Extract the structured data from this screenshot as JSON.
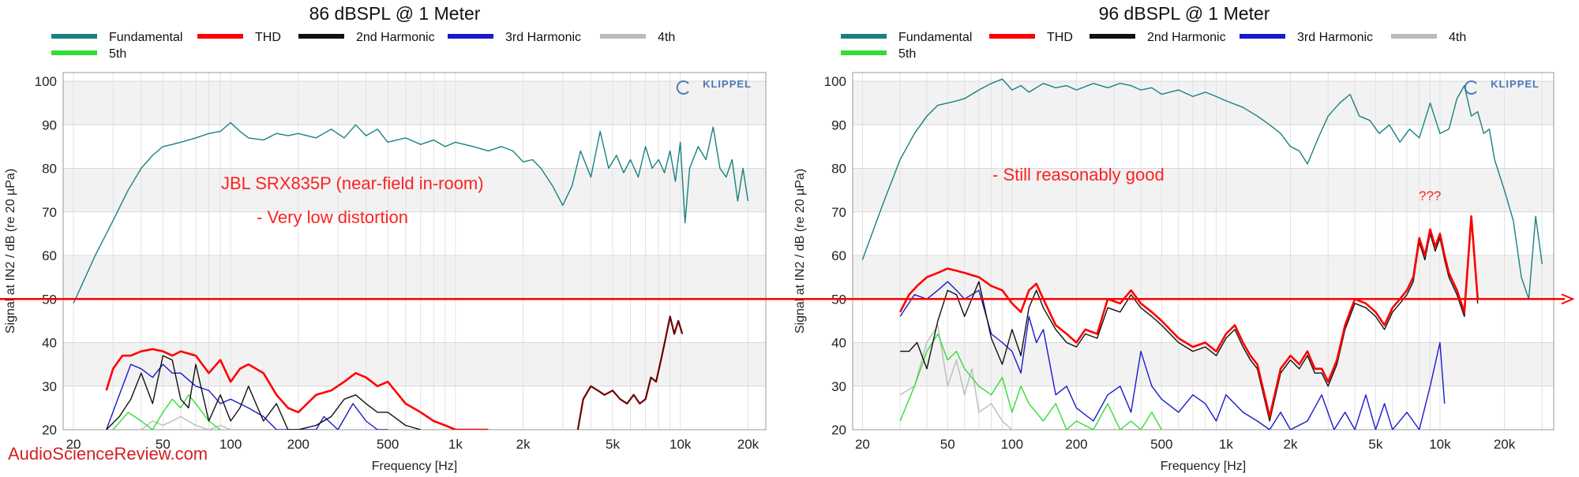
{
  "watermark": "AudioScienceReview.com",
  "colors": {
    "fundamental": "#1a8080",
    "thd": "#ff0000",
    "h2": "#111111",
    "h3": "#1a1acc",
    "h4": "#bbbbbb",
    "h5": "#33dd33",
    "reference_line": "#ff0000",
    "annotation": "#ff2020"
  },
  "reference_line": {
    "y": 50
  },
  "chart_data": [
    {
      "type": "line",
      "title": "86 dBSPL @ 1 Meter",
      "xlabel": "Frequency [Hz]",
      "ylabel": "Signal at IN2 / dB (re 20 µPa)",
      "xscale": "log",
      "xlim": [
        18,
        24000
      ],
      "ylim": [
        20,
        102
      ],
      "xticks": [
        20,
        50,
        100,
        200,
        500,
        1000,
        2000,
        5000,
        10000,
        20000
      ],
      "xtick_labels": [
        "20",
        "50",
        "100",
        "200",
        "500",
        "1k",
        "2k",
        "5k",
        "10k",
        "20k"
      ],
      "yticks": [
        20,
        30,
        40,
        50,
        60,
        70,
        80,
        90,
        100
      ],
      "logo": "KLIPPEL",
      "legend": [
        "Fundamental",
        "THD",
        "2nd Harmonic",
        "3rd Harmonic",
        "4th",
        "5th"
      ],
      "annotations": [
        "JBL SRX835P (near-field in-room)",
        "- Very low distortion"
      ],
      "series": [
        {
          "name": "Fundamental",
          "color": "fundamental",
          "x": [
            20,
            25,
            30,
            35,
            40,
            45,
            50,
            55,
            60,
            70,
            80,
            90,
            100,
            110,
            120,
            140,
            160,
            180,
            200,
            240,
            280,
            320,
            360,
            400,
            450,
            500,
            600,
            700,
            800,
            900,
            1000,
            1200,
            1400,
            1600,
            1800,
            2000,
            2200,
            2400,
            2700,
            3000,
            3300,
            3600,
            4000,
            4400,
            4800,
            5200,
            5600,
            6000,
            6500,
            7000,
            7500,
            8000,
            8500,
            9000,
            9500,
            10000,
            10500,
            11000,
            12000,
            13000,
            14000,
            15000,
            16000,
            17000,
            18000,
            19000,
            20000
          ],
          "y": [
            49,
            60,
            68,
            75,
            80,
            83,
            85,
            85.5,
            86,
            87,
            88,
            88.5,
            90.5,
            88.5,
            87,
            86.5,
            88,
            87.5,
            88,
            87,
            89,
            87,
            90,
            87.5,
            89,
            86,
            87,
            85.5,
            86.5,
            85,
            86,
            85,
            84,
            85,
            84,
            81.5,
            82,
            80,
            76,
            71.5,
            76,
            84,
            78,
            88.5,
            80,
            83,
            79,
            82,
            78,
            85,
            80,
            82,
            79,
            84,
            77,
            86,
            67.5,
            80,
            85,
            82,
            89.5,
            80,
            78,
            82,
            72.5,
            80,
            72.5
          ]
        },
        {
          "name": "THD",
          "color": "thd",
          "x": [
            28,
            30,
            33,
            36,
            40,
            45,
            50,
            55,
            60,
            70,
            80,
            90,
            100,
            110,
            120,
            140,
            160,
            180,
            200,
            240,
            280,
            320,
            360,
            400,
            450,
            500,
            600,
            700,
            800,
            900,
            1000,
            1200,
            1400
          ],
          "y": [
            29,
            34,
            37,
            37,
            38,
            38.5,
            38,
            37,
            38,
            37,
            33,
            36,
            31,
            34,
            35,
            33,
            28,
            25,
            24,
            28,
            29,
            31,
            33,
            32,
            30,
            31,
            26,
            24,
            22,
            21,
            20,
            20,
            20
          ]
        },
        {
          "name": "2nd Harmonic",
          "color": "h2",
          "x": [
            28,
            32,
            36,
            40,
            45,
            50,
            55,
            60,
            65,
            70,
            80,
            90,
            100,
            110,
            120,
            140,
            160,
            180,
            200,
            240,
            280,
            320,
            360,
            400,
            450,
            500,
            600,
            700
          ],
          "y": [
            20,
            23,
            27,
            33,
            26,
            37,
            36,
            27,
            25,
            35,
            22,
            28,
            22,
            25,
            30,
            22,
            26,
            20,
            20,
            21,
            23,
            27,
            28,
            26,
            24,
            24,
            21,
            20
          ]
        },
        {
          "name": "3rd Harmonic",
          "color": "h3",
          "x": [
            28,
            32,
            36,
            40,
            45,
            50,
            55,
            60,
            70,
            80,
            90,
            100,
            120,
            140,
            160,
            180,
            200,
            240,
            260,
            300,
            350,
            400,
            450,
            500
          ],
          "y": [
            20,
            28,
            35,
            34,
            32,
            35,
            33,
            33,
            30,
            29,
            26,
            27,
            25,
            23,
            20,
            20,
            20,
            20,
            23,
            20,
            26,
            22,
            20,
            20
          ]
        },
        {
          "name": "4th",
          "color": "h4",
          "x": [
            40,
            45,
            50,
            55,
            60,
            70,
            80,
            90,
            100
          ],
          "y": [
            20,
            22,
            21,
            22,
            23,
            21,
            20,
            21,
            20
          ]
        },
        {
          "name": "5th",
          "color": "h5",
          "x": [
            30,
            35,
            40,
            45,
            50,
            55,
            60,
            65,
            70,
            80,
            90
          ],
          "y": [
            20,
            24,
            22,
            20,
            24,
            27,
            25,
            28,
            26,
            22,
            20
          ]
        },
        {
          "name": "",
          "color": "h2",
          "distortion_hf": true,
          "x": [
            3500,
            3700,
            4000,
            4300,
            4600,
            5000,
            5400,
            5800,
            6200,
            6600,
            7000,
            7400,
            7800,
            8200,
            8600,
            9000,
            9400,
            9800,
            10200
          ],
          "y": [
            20,
            27,
            30,
            29,
            28,
            29,
            27,
            26,
            28,
            26,
            27,
            32,
            31,
            36,
            41,
            46,
            42,
            45,
            42
          ]
        }
      ]
    },
    {
      "type": "line",
      "title": "96 dBSPL @ 1 Meter",
      "xlabel": "Frequency [Hz]",
      "ylabel": "Signal at IN2 / dB (re 20 µPa)",
      "xscale": "log",
      "xlim": [
        18,
        34000
      ],
      "ylim": [
        20,
        102
      ],
      "xticks": [
        20,
        50,
        100,
        200,
        500,
        1000,
        2000,
        5000,
        10000,
        20000
      ],
      "xtick_labels": [
        "20",
        "50",
        "100",
        "200",
        "500",
        "1k",
        "2k",
        "5k",
        "10k",
        "20k"
      ],
      "yticks": [
        20,
        30,
        40,
        50,
        60,
        70,
        80,
        90,
        100
      ],
      "logo": "KLIPPEL",
      "legend": [
        "Fundamental",
        "THD",
        "2nd Harmonic",
        "3rd Harmonic",
        "4th",
        "5th"
      ],
      "annotations": [
        "- Still reasonably good",
        "???"
      ],
      "series": [
        {
          "name": "Fundamental",
          "color": "fundamental",
          "x": [
            20,
            25,
            30,
            35,
            40,
            45,
            50,
            55,
            60,
            70,
            80,
            90,
            100,
            110,
            120,
            140,
            160,
            180,
            200,
            240,
            280,
            320,
            360,
            400,
            450,
            500,
            600,
            700,
            800,
            900,
            1000,
            1200,
            1400,
            1600,
            1800,
            2000,
            2200,
            2400,
            2700,
            3000,
            3400,
            3800,
            4200,
            4700,
            5200,
            5800,
            6500,
            7200,
            8000,
            9000,
            10000,
            11000,
            12000,
            13000,
            14000,
            15000,
            16000,
            17000,
            18000,
            20000,
            22000,
            24000,
            26000,
            28000,
            30000
          ],
          "y": [
            59,
            72,
            82,
            88,
            92,
            94.5,
            95,
            95.5,
            96,
            98,
            99.5,
            100.5,
            98,
            99,
            97.5,
            99.5,
            98.5,
            99,
            98,
            99.5,
            98.5,
            99.5,
            99,
            98,
            98.5,
            97,
            98,
            96.5,
            97.5,
            96.5,
            95.5,
            94,
            92,
            90,
            88,
            85,
            84,
            81,
            87,
            92,
            95,
            97,
            92,
            91,
            88,
            90,
            86,
            89,
            87,
            95,
            88,
            89,
            96,
            99,
            92,
            93,
            88,
            89,
            82,
            75,
            68,
            55,
            50,
            69,
            58
          ]
        },
        {
          "name": "THD",
          "color": "thd",
          "x": [
            30,
            33,
            36,
            40,
            45,
            50,
            55,
            60,
            70,
            80,
            90,
            100,
            110,
            120,
            130,
            140,
            160,
            180,
            200,
            220,
            250,
            280,
            320,
            360,
            400,
            450,
            500,
            600,
            700,
            800,
            900,
            1000,
            1100,
            1200,
            1300,
            1400,
            1600,
            1800,
            2000,
            2200,
            2400,
            2600,
            2800,
            3000,
            3300,
            3600,
            4000,
            4500,
            5000,
            5500,
            6000,
            6500,
            7000,
            7500,
            8000,
            8500,
            9000,
            9500,
            10000,
            10500,
            11000,
            12000,
            13000,
            14000,
            15000
          ],
          "y": [
            47,
            51,
            53,
            55,
            56,
            57,
            56.5,
            56,
            55,
            53,
            52,
            49,
            47,
            52,
            53.5,
            50,
            44,
            42,
            40,
            43,
            42,
            50,
            49,
            52,
            49,
            47,
            45,
            41,
            39,
            40,
            38,
            42,
            44,
            40,
            37,
            35,
            23,
            34,
            37,
            35,
            38,
            34,
            34,
            31,
            36,
            44,
            50,
            49,
            47,
            44,
            48,
            50,
            52,
            55,
            64,
            60,
            66,
            62,
            65,
            60,
            56,
            52,
            47,
            69,
            50
          ]
        },
        {
          "name": "2nd Harmonic",
          "color": "h2",
          "x": [
            30,
            33,
            36,
            40,
            45,
            50,
            55,
            60,
            70,
            80,
            90,
            100,
            110,
            120,
            130,
            140,
            160,
            180,
            200,
            220,
            250,
            280,
            320,
            360,
            400,
            450,
            500,
            600,
            700,
            800,
            900,
            1000,
            1100,
            1200,
            1300,
            1400,
            1600,
            1800,
            2000,
            2200,
            2400,
            2600,
            2800,
            3000,
            3300,
            3600,
            4000,
            4500,
            5000,
            5500,
            6000,
            6500,
            7000,
            7500,
            8000,
            8500,
            9000,
            9500,
            10000,
            10500,
            11000,
            12000,
            13000,
            14000,
            15000
          ],
          "y": [
            38,
            38,
            40,
            34,
            45,
            52,
            51,
            46,
            54,
            41,
            35,
            43,
            37,
            48,
            52,
            48,
            43,
            40,
            39,
            42,
            41,
            48,
            47,
            51,
            48,
            46,
            44,
            40,
            38,
            39,
            37,
            41,
            43,
            39,
            36,
            34,
            22,
            33,
            36,
            34,
            37,
            33,
            33,
            30,
            35,
            43,
            49,
            48,
            46,
            43,
            47,
            49,
            51,
            54,
            63,
            59,
            65,
            61,
            64,
            59,
            55,
            51,
            46,
            68,
            49
          ]
        },
        {
          "name": "3rd Harmonic",
          "color": "h3",
          "x": [
            30,
            35,
            40,
            45,
            50,
            55,
            60,
            70,
            80,
            90,
            100,
            110,
            120,
            130,
            140,
            160,
            180,
            200,
            240,
            280,
            320,
            360,
            400,
            450,
            500,
            600,
            700,
            800,
            900,
            1000,
            1200,
            1400,
            1600,
            1800,
            2000,
            2400,
            2800,
            3200,
            3600,
            4000,
            4500,
            5000,
            5500,
            6000,
            7000,
            8000,
            9000,
            10000,
            10500
          ],
          "y": [
            46,
            51,
            50,
            52,
            54,
            52,
            50,
            52,
            42,
            40,
            38,
            33,
            46,
            40,
            43,
            28,
            30,
            25,
            22,
            28,
            30,
            24,
            38,
            30,
            27,
            24,
            28,
            26,
            22,
            28,
            24,
            22,
            20,
            24,
            20,
            22,
            28,
            20,
            24,
            20,
            28,
            20,
            26,
            20,
            24,
            20,
            30,
            40,
            26
          ]
        },
        {
          "name": "4th",
          "color": "h4",
          "x": [
            30,
            35,
            40,
            45,
            50,
            55,
            60,
            65,
            70,
            80,
            90,
            100
          ],
          "y": [
            28,
            30,
            40,
            44,
            30,
            36,
            28,
            34,
            24,
            26,
            22,
            20
          ]
        },
        {
          "name": "5th",
          "color": "h5",
          "x": [
            30,
            35,
            40,
            45,
            50,
            55,
            60,
            70,
            80,
            90,
            100,
            110,
            120,
            140,
            160,
            180,
            200,
            240,
            280,
            320,
            360,
            400,
            450,
            500
          ],
          "y": [
            22,
            30,
            38,
            42,
            36,
            38,
            34,
            30,
            28,
            32,
            24,
            30,
            26,
            22,
            26,
            20,
            22,
            20,
            26,
            20,
            22,
            20,
            24,
            20
          ]
        }
      ]
    }
  ]
}
